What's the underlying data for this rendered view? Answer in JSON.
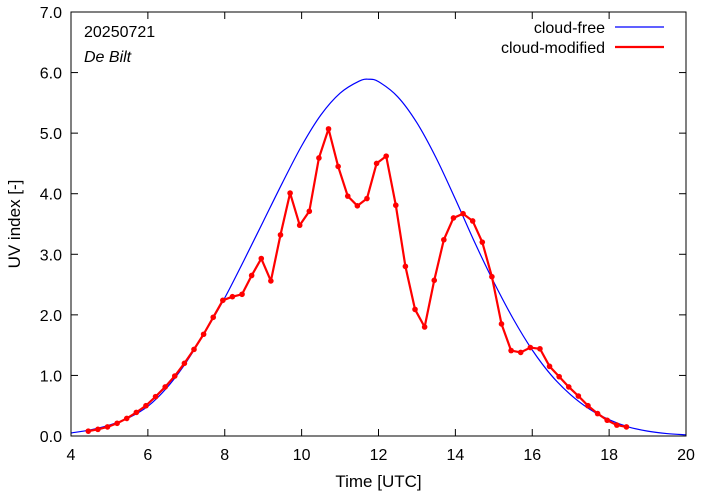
{
  "chart_data": {
    "type": "line",
    "date_label": "20250721",
    "location_label": "De Bilt",
    "xlabel": "Time  [UTC]",
    "ylabel": "UV index  [-]",
    "xlim": [
      4,
      20
    ],
    "ylim": [
      0,
      7
    ],
    "x_ticks": [
      4,
      6,
      8,
      10,
      12,
      14,
      16,
      18,
      20
    ],
    "x_tick_labels": [
      "4",
      "6",
      "8",
      "10",
      "12",
      "14",
      "16",
      "18",
      "20"
    ],
    "y_ticks": [
      0,
      1,
      2,
      3,
      4,
      5,
      6,
      7
    ],
    "y_tick_labels": [
      "0.0",
      "1.0",
      "2.0",
      "3.0",
      "4.0",
      "5.0",
      "6.0",
      "7.0"
    ],
    "grid": "none",
    "legend_position": "top-right",
    "series": [
      {
        "name": "cloud-free",
        "color": "#0000ff",
        "marker": "none",
        "x": [
          4.0,
          4.5,
          5.0,
          5.5,
          6.0,
          6.5,
          7.0,
          7.5,
          8.0,
          8.5,
          9.0,
          9.5,
          10.0,
          10.5,
          11.0,
          11.5,
          11.75,
          12.0,
          12.5,
          13.0,
          13.5,
          14.0,
          14.5,
          15.0,
          15.5,
          16.0,
          16.5,
          17.0,
          17.5,
          18.0,
          18.5,
          19.0,
          19.5,
          20.0
        ],
        "y": [
          0.05,
          0.1,
          0.18,
          0.3,
          0.49,
          0.8,
          1.22,
          1.73,
          2.28,
          2.9,
          3.54,
          4.18,
          4.79,
          5.3,
          5.66,
          5.86,
          5.89,
          5.85,
          5.6,
          5.17,
          4.59,
          3.91,
          3.2,
          2.54,
          1.94,
          1.42,
          1.0,
          0.68,
          0.44,
          0.27,
          0.15,
          0.08,
          0.04,
          0.02
        ]
      },
      {
        "name": "cloud-modified",
        "color": "#ff0000",
        "marker": "circle",
        "x": [
          4.45,
          4.7,
          4.95,
          5.2,
          5.45,
          5.7,
          5.95,
          6.2,
          6.45,
          6.7,
          6.95,
          7.2,
          7.45,
          7.7,
          7.95,
          8.2,
          8.45,
          8.7,
          8.95,
          9.2,
          9.45,
          9.7,
          9.95,
          10.2,
          10.45,
          10.7,
          10.95,
          11.2,
          11.45,
          11.7,
          11.95,
          12.2,
          12.45,
          12.7,
          12.95,
          13.2,
          13.45,
          13.7,
          13.95,
          14.2,
          14.45,
          14.7,
          14.95,
          15.2,
          15.45,
          15.7,
          15.95,
          16.2,
          16.45,
          16.7,
          16.95,
          17.2,
          17.45,
          17.7,
          17.95,
          18.2,
          18.45
        ],
        "y": [
          0.08,
          0.11,
          0.15,
          0.21,
          0.29,
          0.39,
          0.5,
          0.65,
          0.81,
          0.99,
          1.2,
          1.43,
          1.68,
          1.96,
          2.24,
          2.3,
          2.34,
          2.65,
          2.93,
          2.56,
          3.32,
          4.01,
          3.48,
          3.71,
          4.59,
          5.07,
          4.45,
          3.96,
          3.8,
          3.92,
          4.5,
          4.62,
          3.81,
          2.8,
          2.09,
          1.8,
          2.57,
          3.24,
          3.6,
          3.67,
          3.55,
          3.2,
          2.63,
          1.85,
          1.41,
          1.38,
          1.46,
          1.44,
          1.15,
          0.98,
          0.81,
          0.66,
          0.5,
          0.37,
          0.26,
          0.18,
          0.15
        ]
      }
    ]
  }
}
